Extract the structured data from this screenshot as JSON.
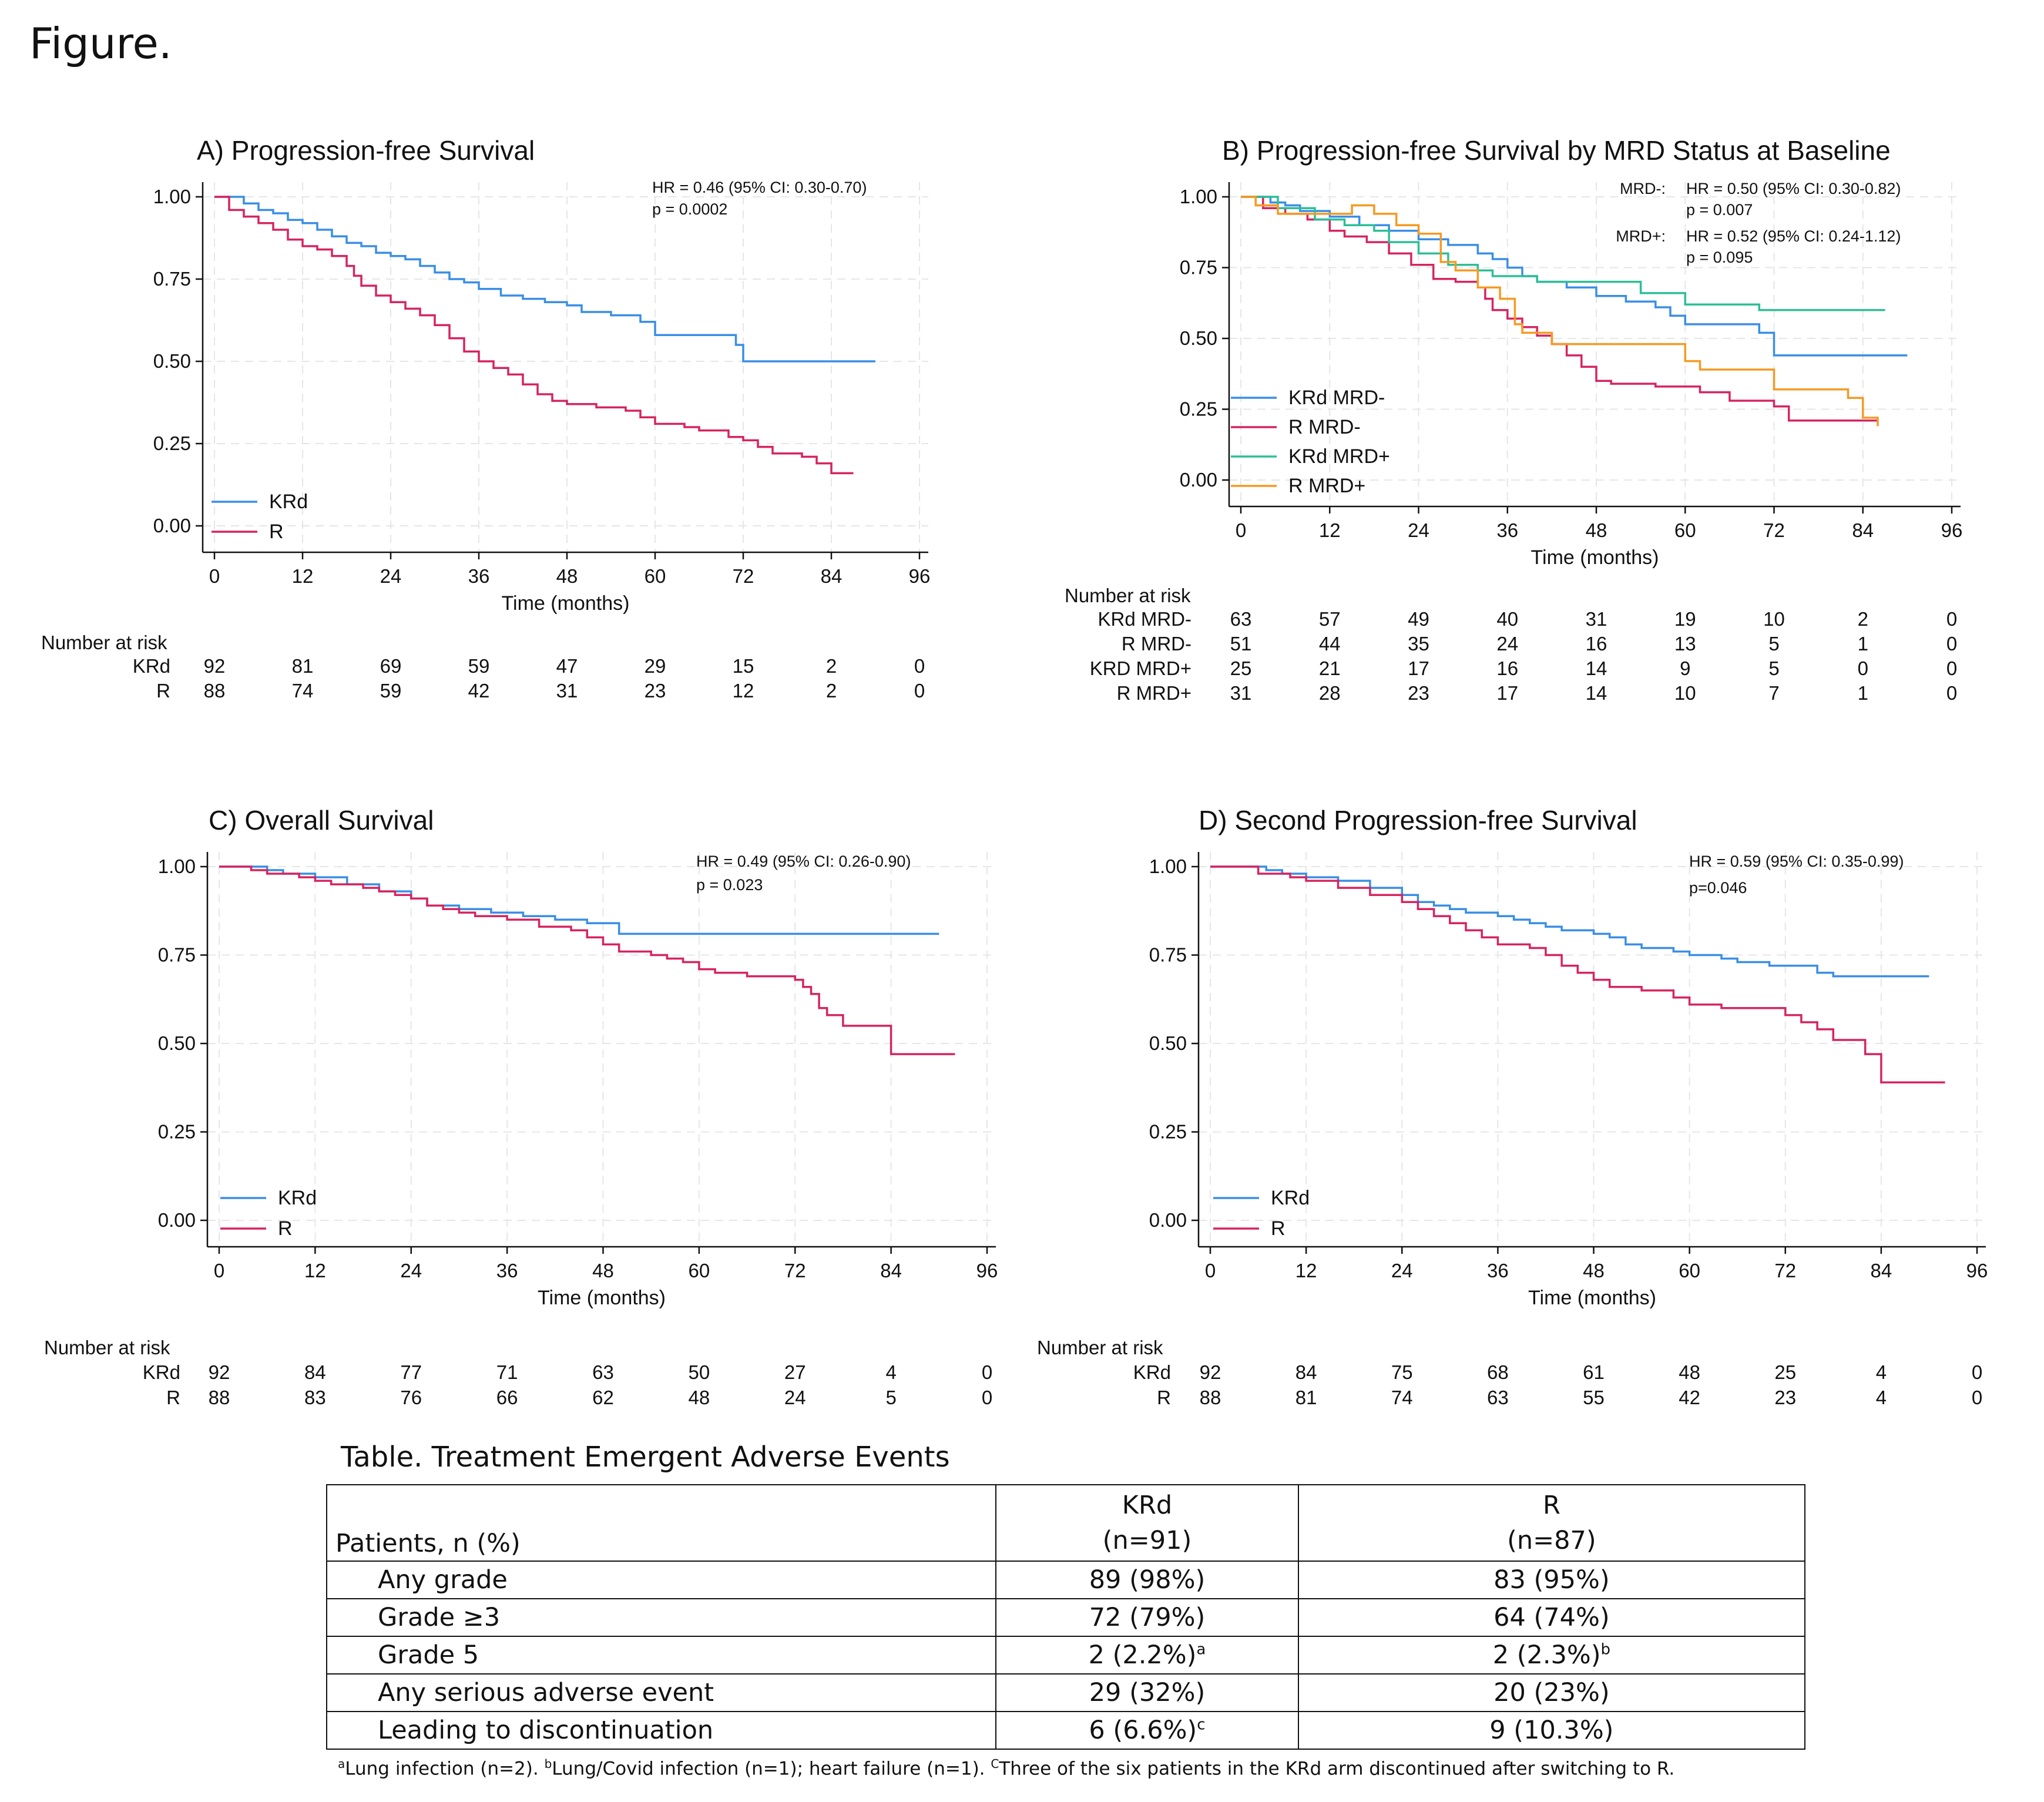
{
  "figure_label": "Figure.",
  "colors": {
    "kr": "#3a8ee6",
    "r": "#d6245f",
    "krmp": "#2dbf96",
    "rmp": "#f59a23",
    "grid": "#e6e6e6"
  },
  "chart_data": [
    {
      "id": "A",
      "type": "line",
      "title": "A) Progression-free Survival",
      "xlabel": "Time (months)",
      "x_ticks": [
        "0",
        "12",
        "24",
        "36",
        "48",
        "60",
        "72",
        "84",
        "96"
      ],
      "y_ticks": [
        "0.00",
        "0.25",
        "0.50",
        "0.75",
        "1.00"
      ],
      "xlim": [
        0,
        96
      ],
      "ylim": [
        0,
        1
      ],
      "annotations": [
        "HR = 0.46 (95%  CI: 0.30-0.70)",
        "p = 0.0002"
      ],
      "legend": [
        "KRd",
        "R"
      ],
      "legend_position": "bottom-left",
      "series": [
        {
          "name": "KRd",
          "color": "#3a8ee6",
          "x": [
            0,
            4,
            6,
            8,
            10,
            12,
            14,
            16,
            18,
            20,
            22,
            24,
            26,
            28,
            30,
            32,
            34,
            36,
            39,
            42,
            45,
            48,
            50,
            54,
            58,
            60,
            66,
            70,
            71,
            72,
            80,
            90
          ],
          "y": [
            1.0,
            0.98,
            0.96,
            0.95,
            0.93,
            0.92,
            0.9,
            0.88,
            0.86,
            0.85,
            0.83,
            0.82,
            0.81,
            0.79,
            0.77,
            0.75,
            0.74,
            0.72,
            0.7,
            0.69,
            0.68,
            0.67,
            0.65,
            0.64,
            0.62,
            0.58,
            0.58,
            0.58,
            0.55,
            0.5,
            0.5,
            0.5
          ]
        },
        {
          "name": "R",
          "color": "#d6245f",
          "x": [
            0,
            2,
            4,
            6,
            8,
            10,
            12,
            14,
            16,
            18,
            19,
            20,
            22,
            24,
            26,
            28,
            30,
            32,
            34,
            36,
            38,
            40,
            42,
            44,
            46,
            48,
            52,
            56,
            58,
            60,
            64,
            66,
            70,
            72,
            74,
            76,
            80,
            82,
            84,
            87
          ],
          "y": [
            1.0,
            0.96,
            0.94,
            0.92,
            0.9,
            0.87,
            0.85,
            0.84,
            0.82,
            0.79,
            0.76,
            0.73,
            0.7,
            0.68,
            0.66,
            0.64,
            0.61,
            0.57,
            0.53,
            0.5,
            0.48,
            0.46,
            0.43,
            0.4,
            0.38,
            0.37,
            0.36,
            0.35,
            0.33,
            0.31,
            0.3,
            0.29,
            0.27,
            0.26,
            0.24,
            0.22,
            0.21,
            0.19,
            0.16,
            0.16
          ]
        }
      ],
      "risk_label": "Number at risk",
      "risk_table": [
        {
          "label": "KRd",
          "values": [
            "92",
            "81",
            "69",
            "59",
            "47",
            "29",
            "15",
            "2",
            "0"
          ]
        },
        {
          "label": "R",
          "values": [
            "88",
            "74",
            "59",
            "42",
            "31",
            "23",
            "12",
            "2",
            "0"
          ]
        }
      ]
    },
    {
      "id": "B",
      "type": "line",
      "title": "B) Progression-free Survival by MRD Status at Baseline",
      "xlabel": "Time (months)",
      "x_ticks": [
        "0",
        "12",
        "24",
        "36",
        "48",
        "60",
        "72",
        "84",
        "96"
      ],
      "y_ticks": [
        "0.00",
        "0.25",
        "0.50",
        "0.75",
        "1.00"
      ],
      "xlim": [
        0,
        96
      ],
      "ylim": [
        0,
        1
      ],
      "annotations": [
        "MRD-:",
        "HR = 0.50 (95% CI: 0.30-0.82)",
        "p = 0.007",
        "MRD+:",
        "HR = 0.52 (95% CI: 0.24-1.12)",
        "p = 0.095"
      ],
      "legend": [
        "KRd MRD-",
        "R MRD-",
        "KRd MRD+",
        "R MRD+"
      ],
      "legend_position": "bottom-left",
      "series": [
        {
          "name": "KRd MRD-",
          "color": "#3a8ee6",
          "x": [
            0,
            4,
            6,
            8,
            12,
            16,
            20,
            24,
            28,
            32,
            34,
            36,
            38,
            40,
            44,
            48,
            52,
            56,
            58,
            60,
            66,
            70,
            72,
            80,
            90
          ],
          "y": [
            1.0,
            0.98,
            0.97,
            0.95,
            0.93,
            0.9,
            0.88,
            0.85,
            0.83,
            0.8,
            0.78,
            0.75,
            0.72,
            0.7,
            0.68,
            0.65,
            0.63,
            0.61,
            0.58,
            0.55,
            0.55,
            0.52,
            0.44,
            0.44,
            0.44
          ]
        },
        {
          "name": "R MRD-",
          "color": "#d6245f",
          "x": [
            0,
            3,
            6,
            9,
            12,
            14,
            17,
            20,
            23,
            26,
            29,
            32,
            33,
            34,
            36,
            38,
            40,
            42,
            44,
            46,
            48,
            50,
            56,
            60,
            62,
            66,
            72,
            74,
            84,
            86
          ],
          "y": [
            1.0,
            0.96,
            0.94,
            0.92,
            0.88,
            0.86,
            0.84,
            0.8,
            0.76,
            0.71,
            0.7,
            0.68,
            0.64,
            0.6,
            0.57,
            0.54,
            0.51,
            0.48,
            0.44,
            0.4,
            0.35,
            0.34,
            0.33,
            0.33,
            0.31,
            0.28,
            0.26,
            0.21,
            0.21,
            0.21
          ]
        },
        {
          "name": "KRd MRD+",
          "color": "#2dbf96",
          "x": [
            0,
            5,
            10,
            14,
            18,
            20,
            24,
            28,
            32,
            34,
            40,
            46,
            48,
            54,
            58,
            60,
            70,
            84,
            87
          ],
          "y": [
            1.0,
            0.96,
            0.92,
            0.9,
            0.88,
            0.84,
            0.8,
            0.76,
            0.74,
            0.72,
            0.7,
            0.7,
            0.7,
            0.66,
            0.66,
            0.62,
            0.6,
            0.6,
            0.6
          ]
        },
        {
          "name": "R MRD+",
          "color": "#f59a23",
          "x": [
            0,
            2,
            5,
            8,
            12,
            15,
            18,
            21,
            24,
            27,
            29,
            32,
            35,
            37,
            38,
            40,
            42,
            46,
            50,
            58,
            60,
            62,
            66,
            72,
            76,
            82,
            84,
            86
          ],
          "y": [
            1.0,
            0.97,
            0.94,
            0.94,
            0.94,
            0.97,
            0.94,
            0.9,
            0.87,
            0.77,
            0.74,
            0.68,
            0.64,
            0.55,
            0.52,
            0.52,
            0.48,
            0.48,
            0.48,
            0.48,
            0.42,
            0.39,
            0.39,
            0.32,
            0.32,
            0.29,
            0.22,
            0.19
          ]
        }
      ],
      "risk_label": "Number at risk",
      "risk_table": [
        {
          "label": "KRd MRD-",
          "values": [
            "63",
            "57",
            "49",
            "40",
            "31",
            "19",
            "10",
            "2",
            "0"
          ]
        },
        {
          "label": "R MRD-",
          "values": [
            "51",
            "44",
            "35",
            "24",
            "16",
            "13",
            "5",
            "1",
            "0"
          ]
        },
        {
          "label": "KRD MRD+",
          "values": [
            "25",
            "21",
            "17",
            "16",
            "14",
            "9",
            "5",
            "0",
            "0"
          ]
        },
        {
          "label": "R MRD+",
          "values": [
            "31",
            "28",
            "23",
            "17",
            "14",
            "10",
            "7",
            "1",
            "0"
          ]
        }
      ]
    },
    {
      "id": "C",
      "type": "line",
      "title": "C) Overall Survival",
      "xlabel": "Time (months)",
      "x_ticks": [
        "0",
        "12",
        "24",
        "36",
        "48",
        "60",
        "72",
        "84",
        "96"
      ],
      "y_ticks": [
        "0.00",
        "0.25",
        "0.50",
        "0.75",
        "1.00"
      ],
      "xlim": [
        0,
        96
      ],
      "ylim": [
        0,
        1
      ],
      "annotations": [
        "HR = 0.49 (95% CI: 0.26-0.90)",
        "p = 0.023"
      ],
      "legend": [
        "KRd",
        "R"
      ],
      "legend_position": "bottom-left",
      "series": [
        {
          "name": "KRd",
          "color": "#3a8ee6",
          "x": [
            0,
            6,
            8,
            12,
            16,
            20,
            24,
            26,
            30,
            34,
            38,
            42,
            46,
            50,
            60,
            70,
            80,
            90
          ],
          "y": [
            1.0,
            0.99,
            0.98,
            0.97,
            0.95,
            0.93,
            0.91,
            0.89,
            0.88,
            0.87,
            0.86,
            0.85,
            0.84,
            0.81,
            0.81,
            0.81,
            0.81,
            0.81
          ]
        },
        {
          "name": "R",
          "color": "#d6245f",
          "x": [
            0,
            4,
            6,
            8,
            10,
            12,
            14,
            16,
            18,
            20,
            22,
            24,
            26,
            28,
            30,
            32,
            36,
            40,
            44,
            46,
            48,
            50,
            54,
            56,
            58,
            60,
            62,
            66,
            72,
            73,
            74,
            75,
            76,
            78,
            82,
            84,
            92
          ],
          "y": [
            1.0,
            0.99,
            0.98,
            0.98,
            0.97,
            0.96,
            0.95,
            0.95,
            0.94,
            0.93,
            0.92,
            0.91,
            0.89,
            0.88,
            0.87,
            0.86,
            0.85,
            0.83,
            0.82,
            0.8,
            0.78,
            0.76,
            0.75,
            0.74,
            0.73,
            0.71,
            0.7,
            0.69,
            0.68,
            0.66,
            0.64,
            0.6,
            0.58,
            0.55,
            0.55,
            0.47,
            0.47
          ]
        }
      ],
      "risk_label": "Number at risk",
      "risk_table": [
        {
          "label": "KRd",
          "values": [
            "92",
            "84",
            "77",
            "71",
            "63",
            "50",
            "27",
            "4",
            "0"
          ]
        },
        {
          "label": "R",
          "values": [
            "88",
            "83",
            "76",
            "66",
            "62",
            "48",
            "24",
            "5",
            "0"
          ]
        }
      ]
    },
    {
      "id": "D",
      "type": "line",
      "title": "D) Second Progression-free Survival",
      "xlabel": "Time (months)",
      "x_ticks": [
        "0",
        "12",
        "24",
        "36",
        "48",
        "60",
        "72",
        "84",
        "96"
      ],
      "y_ticks": [
        "0.00",
        "0.25",
        "0.50",
        "0.75",
        "1.00"
      ],
      "xlim": [
        0,
        96
      ],
      "ylim": [
        0,
        1
      ],
      "annotations": [
        "HR = 0.59 (95% CI: 0.35-0.99)",
        "p=0.046"
      ],
      "legend": [
        "KRd",
        "R"
      ],
      "legend_position": "bottom-left",
      "series": [
        {
          "name": "KRd",
          "color": "#3a8ee6",
          "x": [
            0,
            7,
            9,
            12,
            16,
            20,
            24,
            26,
            28,
            30,
            32,
            34,
            36,
            38,
            40,
            42,
            44,
            48,
            50,
            52,
            54,
            58,
            60,
            64,
            66,
            70,
            72,
            76,
            78,
            84,
            90
          ],
          "y": [
            1.0,
            0.99,
            0.98,
            0.97,
            0.96,
            0.94,
            0.92,
            0.9,
            0.89,
            0.88,
            0.87,
            0.87,
            0.86,
            0.85,
            0.84,
            0.83,
            0.82,
            0.81,
            0.8,
            0.78,
            0.77,
            0.76,
            0.75,
            0.74,
            0.73,
            0.72,
            0.72,
            0.7,
            0.69,
            0.69,
            0.69
          ]
        },
        {
          "name": "R",
          "color": "#d6245f",
          "x": [
            0,
            6,
            10,
            12,
            16,
            20,
            24,
            26,
            28,
            30,
            32,
            34,
            36,
            40,
            42,
            44,
            46,
            48,
            50,
            54,
            58,
            60,
            62,
            64,
            66,
            70,
            72,
            74,
            76,
            78,
            82,
            84,
            92
          ],
          "y": [
            1.0,
            0.98,
            0.97,
            0.96,
            0.94,
            0.92,
            0.9,
            0.88,
            0.86,
            0.84,
            0.82,
            0.8,
            0.78,
            0.77,
            0.75,
            0.72,
            0.7,
            0.68,
            0.66,
            0.65,
            0.63,
            0.61,
            0.61,
            0.6,
            0.6,
            0.6,
            0.58,
            0.56,
            0.54,
            0.51,
            0.47,
            0.39,
            0.39
          ]
        }
      ],
      "risk_label": "Number at risk",
      "risk_table": [
        {
          "label": "KRd",
          "values": [
            "92",
            "84",
            "75",
            "68",
            "61",
            "48",
            "25",
            "4",
            "0"
          ]
        },
        {
          "label": "R",
          "values": [
            "88",
            "81",
            "74",
            "63",
            "55",
            "42",
            "23",
            "4",
            "0"
          ]
        }
      ]
    }
  ],
  "table": {
    "title": "Table. Treatment Emergent Adverse Events",
    "header": {
      "label": "Patients, n (%)",
      "col1": [
        "KRd",
        "(n=91)"
      ],
      "col2": [
        "R",
        "(n=87)"
      ]
    },
    "rows": [
      {
        "label": "Any grade",
        "c1": "89 (98%)",
        "c1_sup": "",
        "c2": "83 (95%)",
        "c2_sup": ""
      },
      {
        "label": "Grade ≥3",
        "c1": "72 (79%)",
        "c1_sup": "",
        "c2": "64 (74%)",
        "c2_sup": ""
      },
      {
        "label": "Grade 5",
        "c1": "2 (2.2%)",
        "c1_sup": "a",
        "c2": "2 (2.3%)",
        "c2_sup": "b"
      },
      {
        "label": "Any serious adverse event",
        "c1": "29 (32%)",
        "c1_sup": "",
        "c2": "20 (23%)",
        "c2_sup": ""
      },
      {
        "label": "Leading to discontinuation",
        "c1": "6 (6.6%)",
        "c1_sup": "c",
        "c2": "9 (10.3%)",
        "c2_sup": ""
      }
    ],
    "footnotes": [
      {
        "mark": "a",
        "text": "Lung infection (n=2). "
      },
      {
        "mark": "b",
        "text": "Lung/Covid infection (n=1); heart failure (n=1). "
      },
      {
        "mark": "C",
        "text": "Three of the six patients in the KRd arm discontinued after switching to R."
      }
    ]
  }
}
